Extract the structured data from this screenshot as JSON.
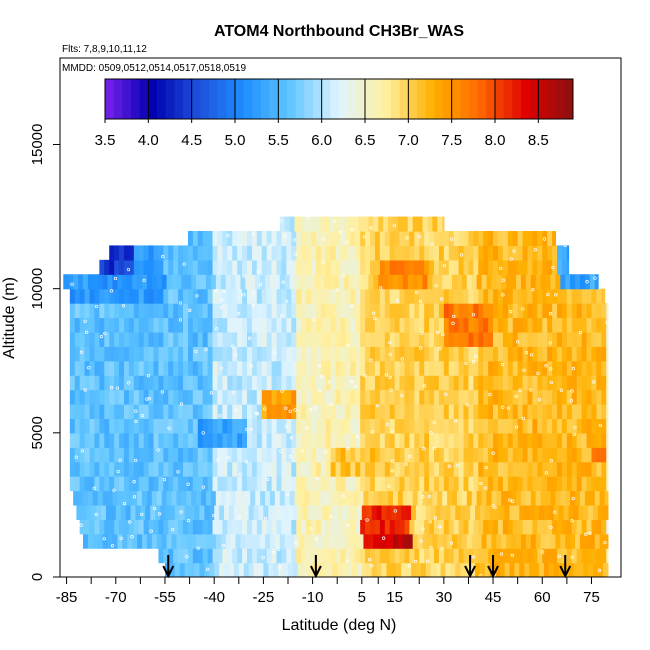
{
  "chart_data": {
    "type": "heatmap",
    "title": "ATOM4 Northbound CH3Br_WAS",
    "subtitle_flights": "Flts: 7,8,9,10,11,12",
    "subtitle_dates": "MMDD: 0509,0512,0514,0517,0518,0519",
    "xlabel": "Latitude (deg N)",
    "ylabel": "Altitude (m)",
    "xlim": [
      -87,
      84
    ],
    "ylim": [
      0,
      18000
    ],
    "x_ticks": [
      -85,
      -70,
      -55,
      -40,
      -25,
      -10,
      5,
      15,
      30,
      45,
      60,
      75
    ],
    "y_ticks": [
      0,
      5000,
      10000,
      15000
    ],
    "colorbar": {
      "ticks": [
        3.5,
        4.0,
        4.5,
        5.0,
        5.5,
        6.0,
        6.5,
        7.0,
        7.5,
        8.0,
        8.5
      ],
      "range": [
        3.5,
        8.9
      ],
      "colors": [
        "#7b22ee",
        "#0000b0",
        "#1e50dc",
        "#1e90ff",
        "#64c8ff",
        "#e0f4ff",
        "#fff0a0",
        "#ffb000",
        "#ff6a00",
        "#e00000",
        "#8b1010"
      ]
    },
    "altitude_bands_m": [
      [
        0,
        500
      ],
      [
        500,
        1000
      ],
      [
        1000,
        1500
      ],
      [
        1500,
        2000
      ],
      [
        2000,
        2500
      ],
      [
        2500,
        3000
      ],
      [
        3000,
        3500
      ],
      [
        3500,
        4000
      ],
      [
        4000,
        4500
      ],
      [
        4500,
        5000
      ],
      [
        5000,
        5500
      ],
      [
        5500,
        6000
      ],
      [
        6000,
        6500
      ],
      [
        6500,
        7000
      ],
      [
        7000,
        7500
      ],
      [
        7500,
        8000
      ],
      [
        8000,
        8500
      ],
      [
        8500,
        9000
      ],
      [
        9000,
        9500
      ],
      [
        9500,
        10000
      ],
      [
        10000,
        10500
      ],
      [
        10500,
        11000
      ],
      [
        11000,
        11500
      ],
      [
        11500,
        12000
      ],
      [
        12000,
        12500
      ]
    ],
    "band_lat_extent": [
      [
        -55,
        80
      ],
      [
        -57,
        80
      ],
      [
        -80,
        80
      ],
      [
        -81,
        80
      ],
      [
        -82,
        80
      ],
      [
        -83,
        80
      ],
      [
        -84,
        80
      ],
      [
        -84,
        80
      ],
      [
        -84,
        80
      ],
      [
        -84,
        80
      ],
      [
        -84,
        80
      ],
      [
        -84,
        80
      ],
      [
        -84,
        80
      ],
      [
        -84,
        80
      ],
      [
        -84,
        80
      ],
      [
        -84,
        80
      ],
      [
        -84,
        80
      ],
      [
        -84,
        80
      ],
      [
        -84,
        80
      ],
      [
        -84,
        79
      ],
      [
        -86,
        77
      ],
      [
        -75,
        68
      ],
      [
        -72,
        68
      ],
      [
        -48,
        64
      ],
      [
        -20,
        30
      ]
    ],
    "region_values": [
      {
        "lat": [
          -86,
          -40
        ],
        "alt": [
          0,
          12500
        ],
        "value": 5.6
      },
      {
        "lat": [
          -40,
          -15
        ],
        "alt": [
          0,
          12500
        ],
        "value": 6.1
      },
      {
        "lat": [
          -15,
          5
        ],
        "alt": [
          0,
          12500
        ],
        "value": 6.6
      },
      {
        "lat": [
          5,
          40
        ],
        "alt": [
          0,
          12500
        ],
        "value": 7.0
      },
      {
        "lat": [
          40,
          80
        ],
        "alt": [
          0,
          12500
        ],
        "value": 7.2
      },
      {
        "lat": [
          -86,
          -55
        ],
        "alt": [
          9500,
          12500
        ],
        "value": 5.2
      },
      {
        "lat": [
          -75,
          -65
        ],
        "alt": [
          10500,
          12000
        ],
        "value": 4.4
      },
      {
        "lat": [
          65,
          80
        ],
        "alt": [
          10000,
          12500
        ],
        "value": 5.3
      },
      {
        "lat": [
          5,
          20
        ],
        "alt": [
          1000,
          2500
        ],
        "value": 8.2
      },
      {
        "lat": [
          15,
          20
        ],
        "alt": [
          1000,
          1600
        ],
        "value": 8.6
      },
      {
        "lat": [
          30,
          45
        ],
        "alt": [
          8000,
          9500
        ],
        "value": 7.7
      },
      {
        "lat": [
          10,
          25
        ],
        "alt": [
          10000,
          11000
        ],
        "value": 7.6
      },
      {
        "lat": [
          -25,
          -15
        ],
        "alt": [
          5500,
          6500
        ],
        "value": 7.4
      },
      {
        "lat": [
          75,
          80
        ],
        "alt": [
          4000,
          4500
        ],
        "value": 7.9
      },
      {
        "lat": [
          -5,
          10
        ],
        "alt": [
          3500,
          4500
        ],
        "value": 7.1
      },
      {
        "lat": [
          -45,
          -30
        ],
        "alt": [
          4500,
          5500
        ],
        "value": 5.3
      }
    ],
    "arrow_latitudes": [
      -54,
      -9,
      38,
      45,
      67
    ]
  }
}
